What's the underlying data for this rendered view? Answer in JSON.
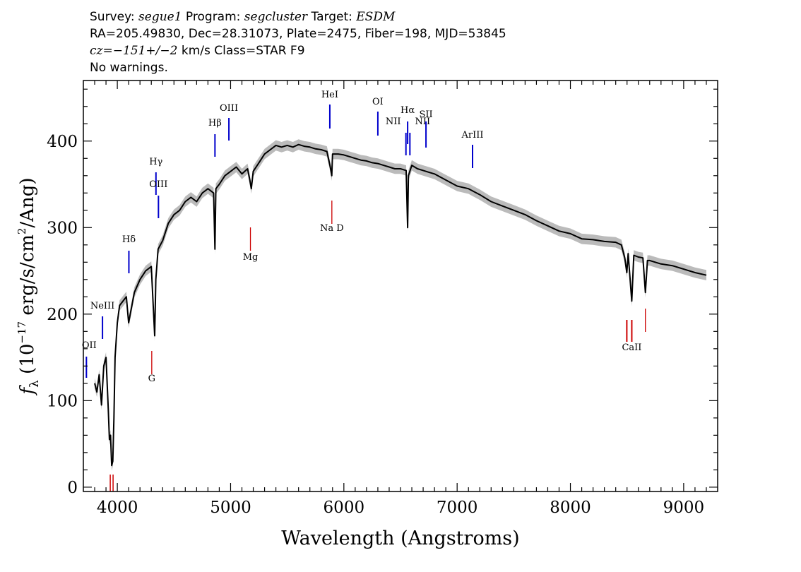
{
  "header": {
    "line1": {
      "survey_label": "Survey: ",
      "survey": "segue1",
      "program_label": " Program: ",
      "program": "segcluster",
      "target_label": " Target: ",
      "target": "ESDM"
    },
    "line2": "RA=205.49830, Dec=28.31073, Plate=2475, Fiber=198, MJD=53845",
    "line3": {
      "cz_label": "cz",
      "cz_eq": "=",
      "cz_value": "−151+/−2",
      "cz_rest": " km/s Class=STAR F9"
    },
    "line4": "No warnings."
  },
  "chart_data": {
    "type": "line",
    "title": "",
    "xlabel": "Wavelength (Angstroms)",
    "ylabel": "f_λ (10^-17 erg/s/cm^2/Ang)",
    "xlim": [
      3700,
      9300
    ],
    "ylim": [
      -5,
      470
    ],
    "xticks": [
      4000,
      5000,
      6000,
      7000,
      8000,
      9000
    ],
    "yticks": [
      0,
      100,
      200,
      300,
      400
    ],
    "grid": false,
    "legend": "none",
    "colors": {
      "spectrum": "#000000",
      "error_band": "#bbbbbb",
      "emission_lines": "#0000cc",
      "absorption_lines": "#cc0000"
    },
    "series": [
      {
        "x": [
          3800,
          3820,
          3840,
          3860,
          3880,
          3900,
          3920,
          3930,
          3940,
          3950,
          3960,
          3970,
          3980,
          4000,
          4020,
          4050,
          4080,
          4100,
          4150,
          4200,
          4250,
          4300,
          4330,
          4340,
          4360,
          4400,
          4450,
          4500,
          4550,
          4600,
          4650,
          4700,
          4750,
          4800,
          4850,
          4862,
          4870,
          4900,
          4950,
          5000,
          5050,
          5100,
          5150,
          5170,
          5183,
          5200,
          5250,
          5300,
          5350,
          5400,
          5450,
          5500,
          5550,
          5600,
          5650,
          5700,
          5750,
          5800,
          5850,
          5880,
          5893,
          5900,
          5950,
          6000,
          6050,
          6100,
          6150,
          6200,
          6250,
          6300,
          6350,
          6400,
          6450,
          6500,
          6550,
          6563,
          6570,
          6600,
          6650,
          6700,
          6750,
          6800,
          6900,
          7000,
          7100,
          7200,
          7300,
          7400,
          7500,
          7600,
          7700,
          7800,
          7900,
          8000,
          8100,
          8200,
          8300,
          8400,
          8450,
          8480,
          8498,
          8510,
          8542,
          8560,
          8600,
          8640,
          8662,
          8680,
          8700,
          8800,
          8900,
          9000,
          9100,
          9200
        ],
        "y": [
          120,
          110,
          130,
          95,
          140,
          150,
          90,
          55,
          60,
          25,
          30,
          80,
          150,
          190,
          210,
          215,
          220,
          190,
          225,
          240,
          250,
          255,
          175,
          240,
          275,
          285,
          305,
          315,
          320,
          330,
          335,
          330,
          340,
          345,
          340,
          275,
          345,
          350,
          360,
          365,
          370,
          362,
          368,
          355,
          345,
          365,
          375,
          385,
          390,
          395,
          393,
          395,
          393,
          396,
          394,
          393,
          391,
          390,
          388,
          370,
          360,
          385,
          385,
          384,
          382,
          380,
          378,
          377,
          375,
          374,
          372,
          370,
          368,
          368,
          366,
          300,
          360,
          372,
          368,
          366,
          364,
          362,
          355,
          348,
          345,
          338,
          330,
          325,
          320,
          315,
          308,
          302,
          296,
          293,
          287,
          286,
          284,
          283,
          280,
          265,
          248,
          270,
          215,
          268,
          266,
          265,
          225,
          262,
          262,
          258,
          256,
          252,
          248,
          245
        ]
      }
    ],
    "line_labels": [
      {
        "name": "OII",
        "wavelength": 3727,
        "kind": "emission",
        "text": "OII"
      },
      {
        "name": "NeIII",
        "wavelength": 3869,
        "kind": "emission",
        "text": "NeIII"
      },
      {
        "name": "Hdelta",
        "wavelength": 4102,
        "kind": "emission",
        "text": "Hδ"
      },
      {
        "name": "Hgamma",
        "wavelength": 4341,
        "kind": "emission",
        "text": "Hγ"
      },
      {
        "name": "OIII-4363",
        "wavelength": 4363,
        "kind": "emission",
        "text": "OIII"
      },
      {
        "name": "Hbeta",
        "wavelength": 4862,
        "kind": "emission",
        "text": "Hβ"
      },
      {
        "name": "OIII-5007",
        "wavelength": 4985,
        "kind": "emission",
        "text": "OIII"
      },
      {
        "name": "HeI",
        "wavelength": 5876,
        "kind": "emission",
        "text": "HeI"
      },
      {
        "name": "OI",
        "wavelength": 6300,
        "kind": "emission",
        "text": "OI"
      },
      {
        "name": "NII-6548",
        "wavelength": 6548,
        "kind": "emission",
        "text": "NII"
      },
      {
        "name": "Halpha",
        "wavelength": 6563,
        "kind": "emission",
        "text": "Hα"
      },
      {
        "name": "NII-6583",
        "wavelength": 6583,
        "kind": "emission",
        "text": "NII"
      },
      {
        "name": "SII",
        "wavelength": 6725,
        "kind": "emission",
        "text": "SII"
      },
      {
        "name": "ArIII",
        "wavelength": 7136,
        "kind": "emission",
        "text": "ArIII"
      },
      {
        "name": "CaHK",
        "wavelength": 3950,
        "kind": "absorption",
        "text": ""
      },
      {
        "name": "G-band",
        "wavelength": 4304,
        "kind": "absorption",
        "text": "G"
      },
      {
        "name": "Mg",
        "wavelength": 5175,
        "kind": "absorption",
        "text": "Mg"
      },
      {
        "name": "NaD",
        "wavelength": 5894,
        "kind": "absorption",
        "text": "Na D"
      },
      {
        "name": "CaII-triplet",
        "wavelength": 8542,
        "kind": "absorption",
        "text": "CaII"
      },
      {
        "name": "CaII-8662",
        "wavelength": 8662,
        "kind": "absorption",
        "text": ""
      }
    ]
  }
}
